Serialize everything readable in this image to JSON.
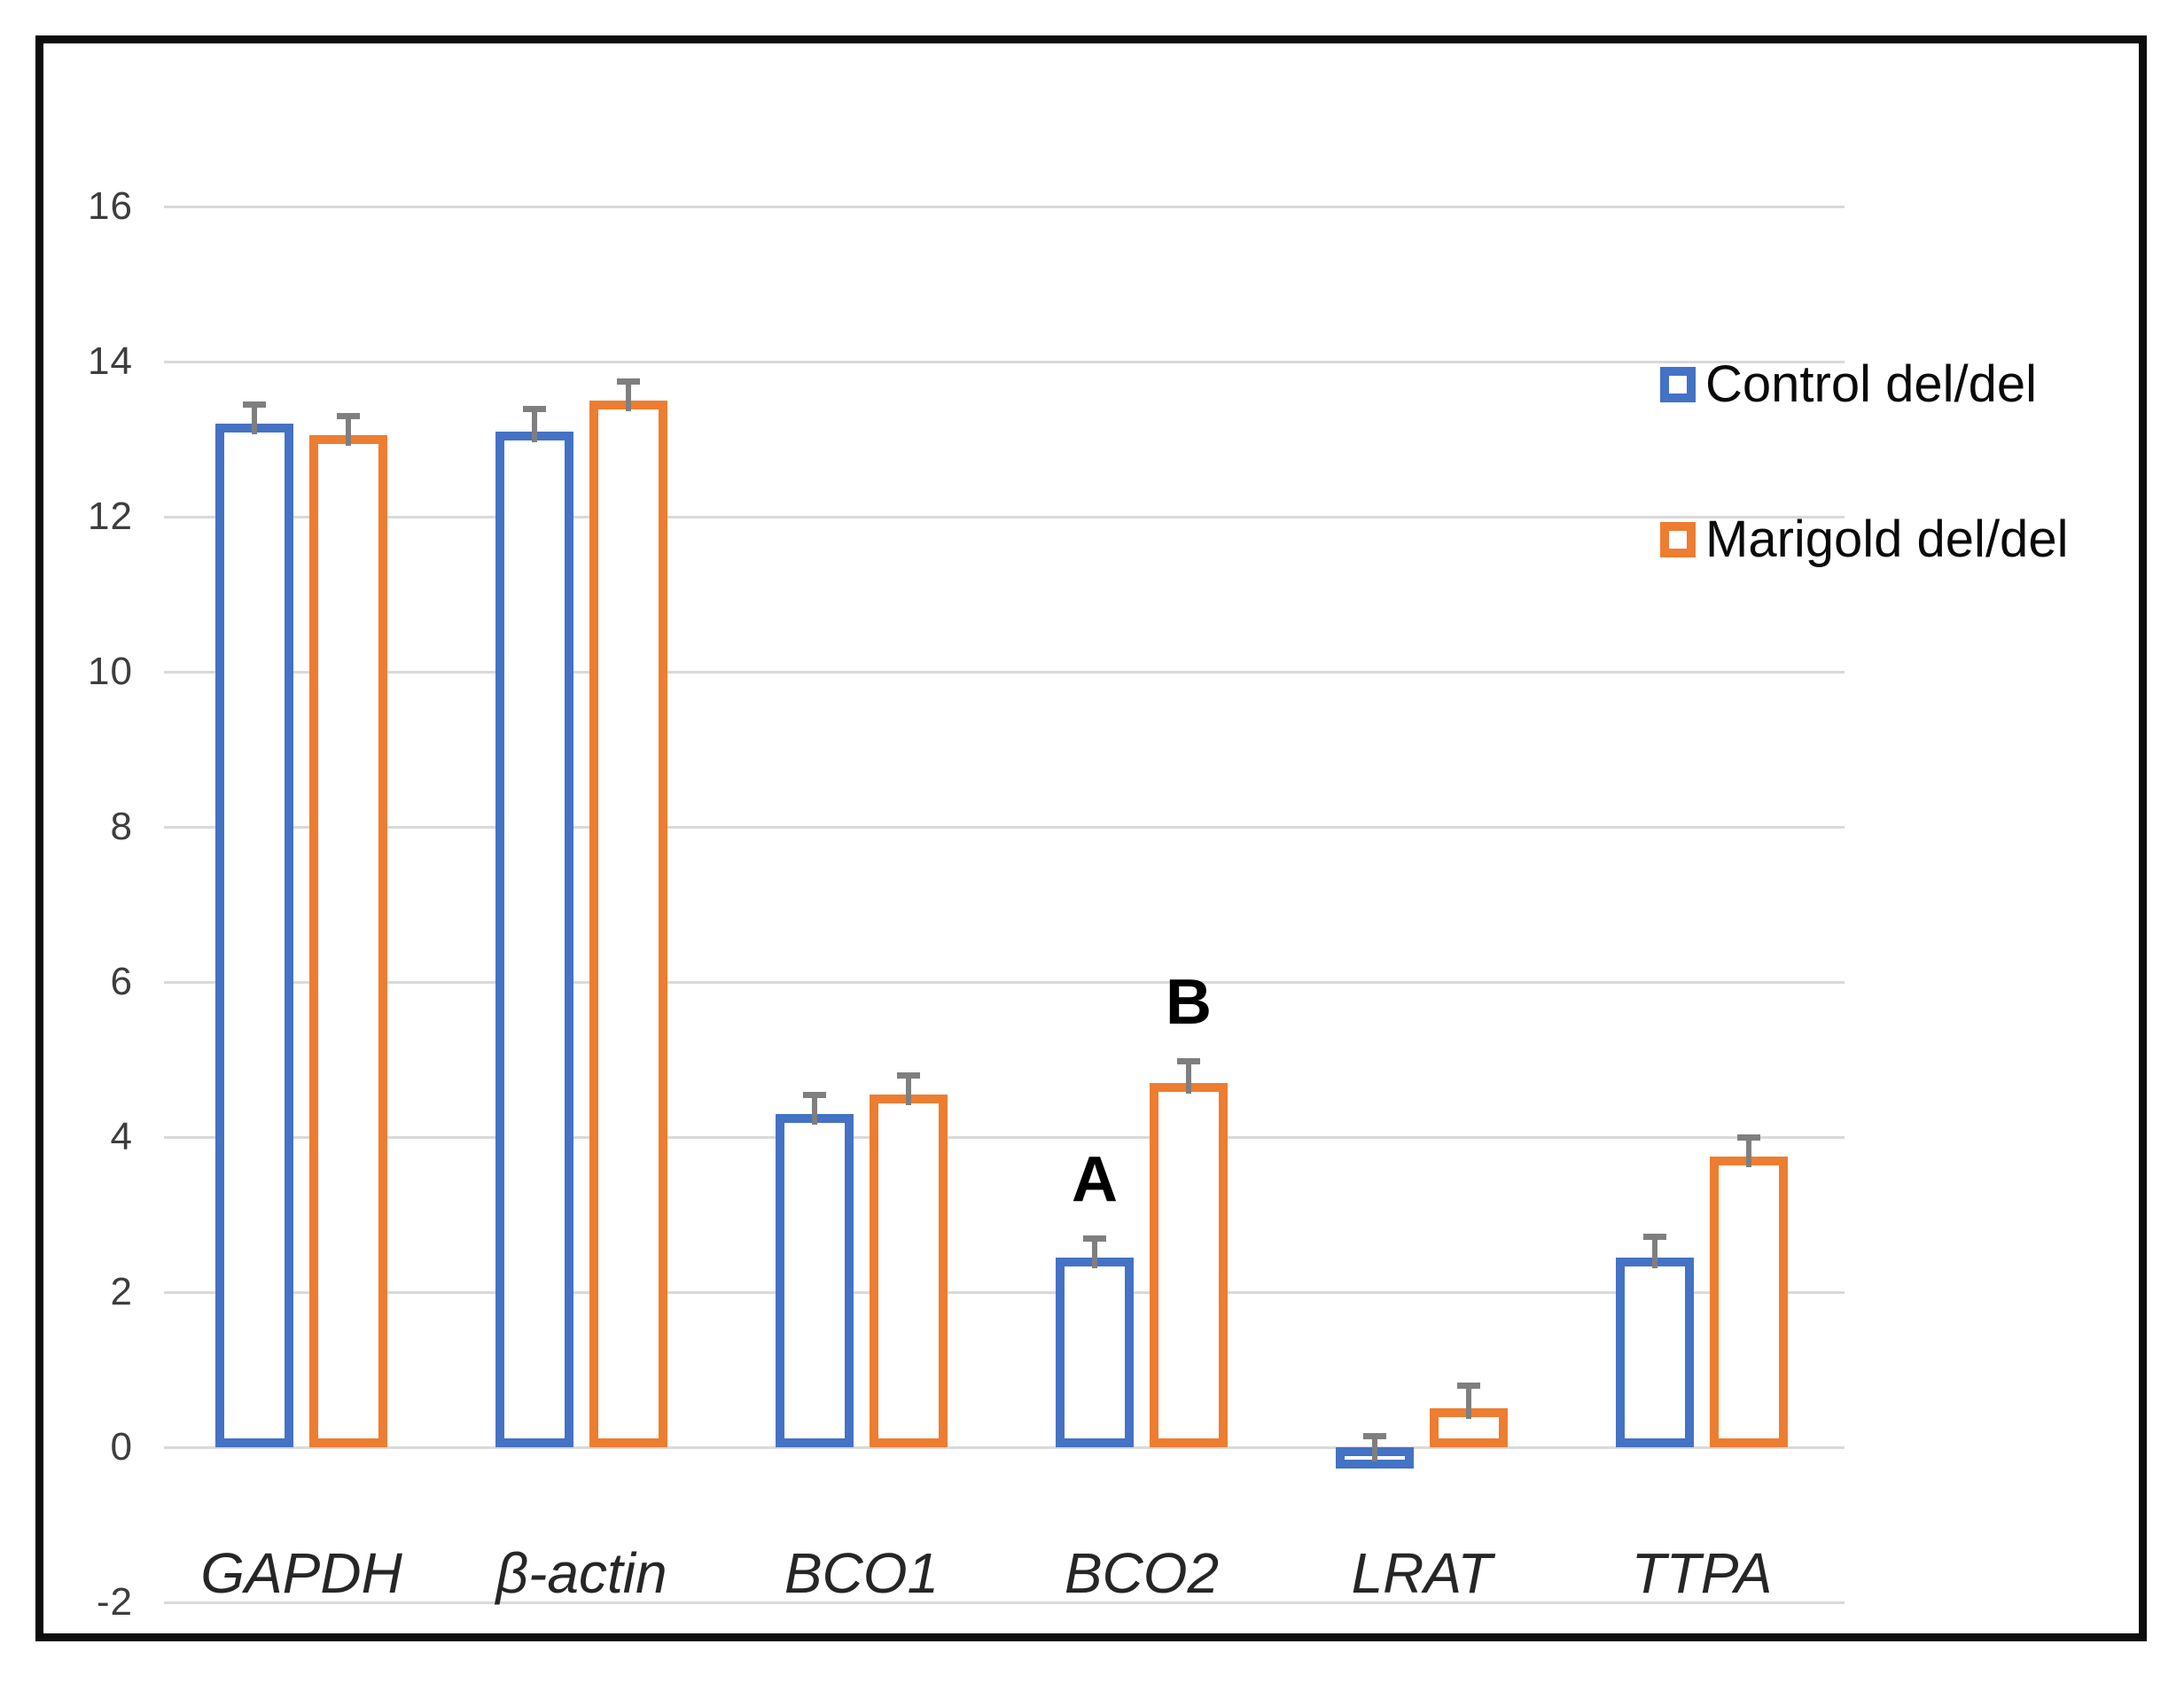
{
  "figure": {
    "background": "#ffffff",
    "border_color": "#0d0d0d"
  },
  "legend": {
    "items": [
      {
        "label": "Control del/del",
        "color": "#4472C4"
      },
      {
        "label": "Marigold del/del",
        "color": "#ED7D31"
      }
    ]
  },
  "chart_data": {
    "type": "bar",
    "title": "",
    "xlabel": "",
    "ylabel": "",
    "categories": [
      "GAPDH",
      "β-actin",
      "BCO1",
      "BCO2",
      "LRAT",
      "TTPA"
    ],
    "series": [
      {
        "name": "Control del/del",
        "color": "#4472C4",
        "values": [
          13.2,
          13.1,
          4.3,
          2.45,
          -0.2,
          2.45
        ],
        "errors": [
          0.25,
          0.3,
          0.25,
          0.25,
          0.35,
          0.27
        ]
      },
      {
        "name": "Marigold del/del",
        "color": "#ED7D31",
        "values": [
          13.05,
          13.5,
          4.55,
          4.7,
          0.5,
          3.75
        ],
        "errors": [
          0.25,
          0.25,
          0.25,
          0.28,
          0.3,
          0.25
        ]
      }
    ],
    "bar_style": "outlined-hollow",
    "error_bar_color": "#7f7f7f",
    "annotations": [
      {
        "text": "A",
        "category_index": 3,
        "series_index": 0
      },
      {
        "text": "B",
        "category_index": 3,
        "series_index": 1
      }
    ],
    "y_axis": {
      "min": -2,
      "max": 16,
      "tick_step": 2,
      "tick_labels": [
        "-2",
        "0",
        "2",
        "4",
        "6",
        "8",
        "10",
        "12",
        "14",
        "16"
      ]
    },
    "grid": true,
    "legend_position": "upper-right-inside"
  }
}
